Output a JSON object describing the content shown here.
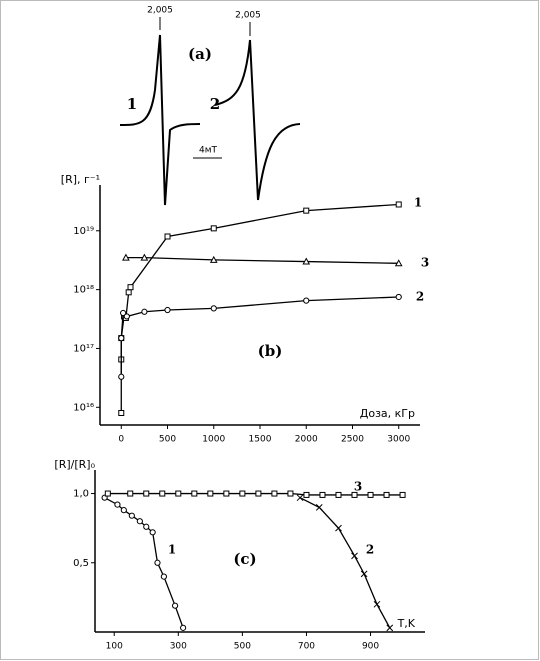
{
  "chart_data": [
    {
      "type": "spectrum",
      "title": "(a)",
      "annotations": [
        "2,005",
        "2,005",
        "4мТ"
      ],
      "series": [
        {
          "name": "1"
        },
        {
          "name": "2"
        }
      ]
    },
    {
      "type": "scatter",
      "title": "(b)",
      "xlabel": "Доза, кГр",
      "ylabel": "[R], г⁻¹",
      "log_y": true,
      "xlim": [
        -230,
        3230
      ],
      "ylim": [
        5000000000000000.0,
        6e+19
      ],
      "xticks": [
        0,
        500,
        1000,
        1500,
        2000,
        2500,
        3000
      ],
      "yticks": [
        {
          "value": 1e+16,
          "label": "10¹⁶"
        },
        {
          "value": 1e+17,
          "label": "10¹⁷"
        },
        {
          "value": 1e+18,
          "label": "10¹⁸"
        },
        {
          "value": 1e+19,
          "label": "10¹⁹"
        }
      ],
      "series": [
        {
          "name": "1",
          "color": "#000000",
          "marker": "square",
          "x": [
            0,
            0,
            0,
            30,
            50,
            80,
            100,
            500,
            1000,
            2000,
            3000
          ],
          "values": [
            8000000000000000.0,
            6.5e+16,
            1.5e+17,
            3.5e+17,
            3.3e+17,
            9e+17,
            1.1e+18,
            8e+18,
            1.1e+19,
            2.2e+19,
            2.8e+19
          ]
        },
        {
          "name": "3",
          "color": "#000000",
          "marker": "triangle",
          "x": [
            50,
            250,
            1000,
            2000,
            3000
          ],
          "values": [
            3.5e+18,
            3.5e+18,
            3.2e+18,
            3e+18,
            2.8e+18
          ]
        },
        {
          "name": "2",
          "color": "#000000",
          "marker": "circle",
          "x": [
            0,
            0,
            20,
            60,
            250,
            500,
            1000,
            2000,
            3000
          ],
          "values": [
            3.3e+16,
            1.5e+17,
            4e+17,
            3.5e+17,
            4.2e+17,
            4.5e+17,
            4.8e+17,
            6.5e+17,
            7.5e+17
          ]
        }
      ]
    },
    {
      "type": "scatter",
      "title": "(c)",
      "xlabel": "T,K",
      "ylabel": "[R]/[R]₀",
      "log_y": false,
      "xlim": [
        40,
        1070
      ],
      "ylim": [
        0,
        1.17
      ],
      "xticks": [
        100,
        300,
        500,
        700,
        900
      ],
      "yticks": [
        {
          "value": 0.5,
          "label": "0,5"
        },
        {
          "value": 1,
          "label": "1,0"
        }
      ],
      "series": [
        {
          "name": "1",
          "color": "#000000",
          "marker": "circle",
          "x": [
            70,
            110,
            130,
            155,
            180,
            200,
            220,
            235,
            255,
            290,
            315
          ],
          "values": [
            0.97,
            0.92,
            0.88,
            0.84,
            0.8,
            0.76,
            0.72,
            0.5,
            0.4,
            0.19,
            0.03
          ]
        },
        {
          "name": "2",
          "color": "#000000",
          "marker": "cross",
          "x": [
            680,
            740,
            800,
            850,
            880,
            920,
            960
          ],
          "values": [
            0.97,
            0.9,
            0.75,
            0.55,
            0.42,
            0.2,
            0.03
          ]
        },
        {
          "name": "3",
          "color": "#000000",
          "marker": "square",
          "x": [
            80,
            150,
            200,
            250,
            300,
            350,
            400,
            450,
            500,
            550,
            600,
            650,
            700,
            750,
            800,
            850,
            900,
            950,
            1000
          ],
          "values": [
            1,
            1,
            1,
            1,
            1,
            1,
            1,
            1,
            1,
            1,
            1,
            1,
            0.99,
            0.99,
            0.99,
            0.99,
            0.99,
            0.99,
            0.99
          ]
        }
      ]
    }
  ]
}
